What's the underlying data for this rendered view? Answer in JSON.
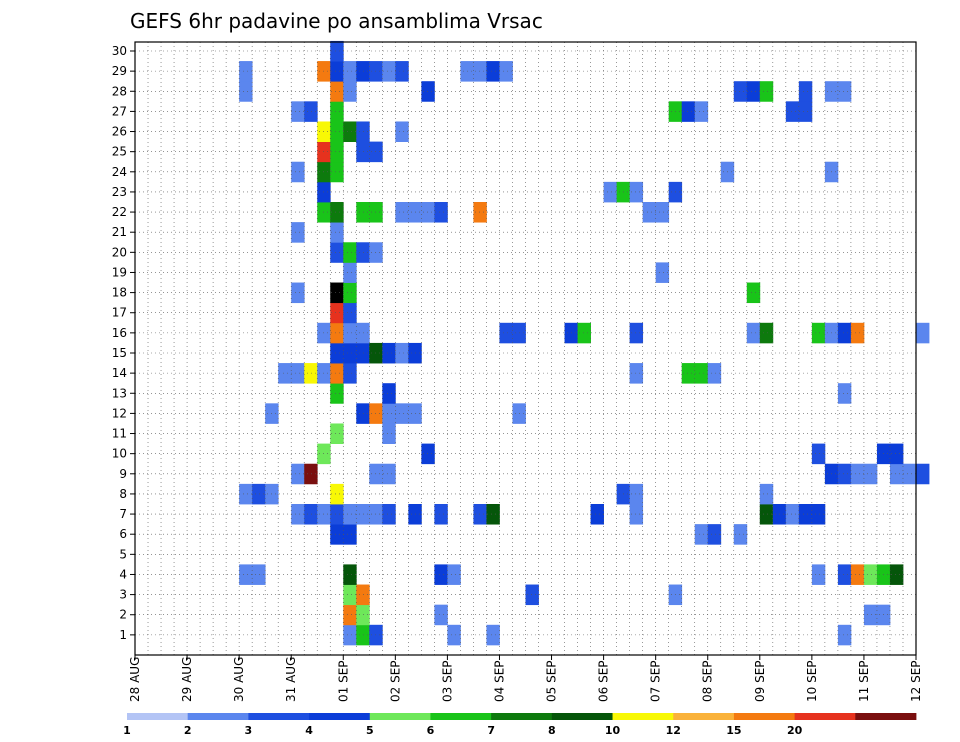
{
  "chart_data": {
    "type": "heatmap",
    "title": "GEFS 6hr padavine po ansamblima Vrsac",
    "xlabel": "",
    "ylabel": "",
    "x_tick_labels": [
      "28 AUG",
      "29 AUG",
      "30 AUG",
      "31 AUG",
      "01 SEP",
      "02 SEP",
      "03 SEP",
      "04 SEP",
      "05 SEP",
      "06 SEP",
      "07 SEP",
      "08 SEP",
      "09 SEP",
      "10 SEP",
      "11 SEP",
      "12 SEP"
    ],
    "y_tick_labels": [
      "1",
      "2",
      "3",
      "4",
      "5",
      "6",
      "7",
      "8",
      "9",
      "10",
      "11",
      "12",
      "13",
      "14",
      "15",
      "16",
      "17",
      "18",
      "19",
      "20",
      "21",
      "22",
      "23",
      "24",
      "25",
      "26",
      "27",
      "28",
      "29",
      "30"
    ],
    "xlim_days": [
      0,
      15
    ],
    "time_step_hours": 6,
    "ylim": [
      0,
      30
    ],
    "grid": true,
    "colorbar": {
      "labels": [
        "1",
        "2",
        "3",
        "4",
        "5",
        "6",
        "7",
        "8",
        "10",
        "12",
        "15",
        "20"
      ],
      "colors": [
        "#b3c4f5",
        "#5b86ee",
        "#1e4fe0",
        "#0b3dd8",
        "#6ee85a",
        "#19c419",
        "#0d7a0d",
        "#05560a",
        "#f8f805",
        "#fab23a",
        "#f47a10",
        "#e6321e",
        "#7a0f0f"
      ]
    },
    "cells": [
      [
        1,
        16,
        1
      ],
      [
        1,
        17,
        5
      ],
      [
        1,
        18,
        2
      ],
      [
        1,
        24,
        1
      ],
      [
        1,
        27,
        1
      ],
      [
        1,
        54,
        1
      ],
      [
        2,
        16,
        10
      ],
      [
        2,
        17,
        4
      ],
      [
        2,
        23,
        1
      ],
      [
        2,
        56,
        1
      ],
      [
        2,
        57,
        1
      ],
      [
        3,
        16,
        4
      ],
      [
        3,
        17,
        10
      ],
      [
        3,
        30,
        2
      ],
      [
        3,
        41,
        1
      ],
      [
        4,
        8,
        1
      ],
      [
        4,
        9,
        1
      ],
      [
        4,
        16,
        7
      ],
      [
        4,
        23,
        3
      ],
      [
        4,
        24,
        1
      ],
      [
        4,
        52,
        1
      ],
      [
        4,
        54,
        2
      ],
      [
        4,
        55,
        10
      ],
      [
        4,
        56,
        4
      ],
      [
        4,
        57,
        5
      ],
      [
        4,
        58,
        7
      ],
      [
        6,
        15,
        3
      ],
      [
        6,
        16,
        3
      ],
      [
        6,
        43,
        1
      ],
      [
        6,
        44,
        2
      ],
      [
        6,
        46,
        1
      ],
      [
        7,
        12,
        1
      ],
      [
        7,
        13,
        2
      ],
      [
        7,
        14,
        1
      ],
      [
        7,
        15,
        2
      ],
      [
        7,
        16,
        1
      ],
      [
        7,
        17,
        1
      ],
      [
        7,
        18,
        1
      ],
      [
        7,
        19,
        2
      ],
      [
        7,
        21,
        3
      ],
      [
        7,
        23,
        2
      ],
      [
        7,
        26,
        2
      ],
      [
        7,
        27,
        7
      ],
      [
        7,
        35,
        3
      ],
      [
        7,
        38,
        1
      ],
      [
        7,
        48,
        7
      ],
      [
        7,
        49,
        3
      ],
      [
        7,
        50,
        1
      ],
      [
        7,
        51,
        3
      ],
      [
        7,
        52,
        3
      ],
      [
        8,
        8,
        1
      ],
      [
        8,
        9,
        2
      ],
      [
        8,
        10,
        1
      ],
      [
        8,
        15,
        8
      ],
      [
        8,
        37,
        2
      ],
      [
        8,
        38,
        1
      ],
      [
        8,
        48,
        1
      ],
      [
        9,
        12,
        1
      ],
      [
        9,
        13,
        12
      ],
      [
        9,
        18,
        1
      ],
      [
        9,
        19,
        1
      ],
      [
        9,
        53,
        3
      ],
      [
        9,
        54,
        2
      ],
      [
        9,
        55,
        1
      ],
      [
        9,
        56,
        1
      ],
      [
        9,
        58,
        1
      ],
      [
        9,
        59,
        1
      ],
      [
        9,
        60,
        2
      ],
      [
        10,
        14,
        4
      ],
      [
        10,
        22,
        3
      ],
      [
        10,
        52,
        2
      ],
      [
        10,
        57,
        3
      ],
      [
        10,
        58,
        3
      ],
      [
        11,
        15,
        4
      ],
      [
        11,
        19,
        1
      ],
      [
        12,
        10,
        1
      ],
      [
        12,
        17,
        3
      ],
      [
        12,
        18,
        10
      ],
      [
        12,
        19,
        1
      ],
      [
        12,
        20,
        1
      ],
      [
        12,
        21,
        1
      ],
      [
        12,
        29,
        1
      ],
      [
        13,
        15,
        5
      ],
      [
        13,
        19,
        3
      ],
      [
        13,
        54,
        1
      ],
      [
        14,
        11,
        1
      ],
      [
        14,
        12,
        1
      ],
      [
        14,
        13,
        8
      ],
      [
        14,
        14,
        1
      ],
      [
        14,
        15,
        10
      ],
      [
        14,
        16,
        2
      ],
      [
        14,
        38,
        1
      ],
      [
        14,
        42,
        5
      ],
      [
        14,
        43,
        5
      ],
      [
        14,
        44,
        1
      ],
      [
        15,
        15,
        3
      ],
      [
        15,
        16,
        3
      ],
      [
        15,
        17,
        3
      ],
      [
        15,
        18,
        7
      ],
      [
        15,
        19,
        3
      ],
      [
        15,
        20,
        1
      ],
      [
        15,
        21,
        3
      ],
      [
        16,
        14,
        1
      ],
      [
        16,
        15,
        10
      ],
      [
        16,
        16,
        1
      ],
      [
        16,
        17,
        1
      ],
      [
        16,
        28,
        2
      ],
      [
        16,
        29,
        2
      ],
      [
        16,
        33,
        3
      ],
      [
        16,
        34,
        5
      ],
      [
        16,
        38,
        2
      ],
      [
        16,
        47,
        1
      ],
      [
        16,
        48,
        6
      ],
      [
        16,
        52,
        5
      ],
      [
        16,
        53,
        1
      ],
      [
        16,
        54,
        3
      ],
      [
        16,
        55,
        10
      ],
      [
        16,
        60,
        1
      ],
      [
        17,
        15,
        11
      ],
      [
        17,
        16,
        2
      ],
      [
        18,
        12,
        1
      ],
      [
        18,
        15,
        13
      ],
      [
        18,
        16,
        5
      ],
      [
        18,
        47,
        5
      ],
      [
        19,
        16,
        1
      ],
      [
        19,
        40,
        1
      ],
      [
        20,
        15,
        2
      ],
      [
        20,
        16,
        5
      ],
      [
        20,
        17,
        2
      ],
      [
        20,
        18,
        1
      ],
      [
        21,
        12,
        1
      ],
      [
        21,
        15,
        1
      ],
      [
        22,
        14,
        5
      ],
      [
        22,
        15,
        6
      ],
      [
        22,
        17,
        5
      ],
      [
        22,
        18,
        5
      ],
      [
        22,
        20,
        1
      ],
      [
        22,
        21,
        1
      ],
      [
        22,
        22,
        1
      ],
      [
        22,
        23,
        2
      ],
      [
        22,
        26,
        10
      ],
      [
        22,
        39,
        1
      ],
      [
        22,
        40,
        1
      ],
      [
        23,
        14,
        3
      ],
      [
        23,
        36,
        1
      ],
      [
        23,
        37,
        5
      ],
      [
        23,
        38,
        1
      ],
      [
        23,
        41,
        2
      ],
      [
        24,
        12,
        1
      ],
      [
        24,
        14,
        6
      ],
      [
        24,
        15,
        5
      ],
      [
        24,
        45,
        1
      ],
      [
        24,
        53,
        1
      ],
      [
        25,
        14,
        11
      ],
      [
        25,
        15,
        5
      ],
      [
        25,
        17,
        2
      ],
      [
        25,
        18,
        2
      ],
      [
        26,
        14,
        8
      ],
      [
        26,
        15,
        5
      ],
      [
        26,
        16,
        6
      ],
      [
        26,
        17,
        2
      ],
      [
        26,
        20,
        1
      ],
      [
        27,
        12,
        1
      ],
      [
        27,
        13,
        2
      ],
      [
        27,
        15,
        5
      ],
      [
        27,
        41,
        5
      ],
      [
        27,
        42,
        3
      ],
      [
        27,
        43,
        1
      ],
      [
        27,
        50,
        2
      ],
      [
        27,
        51,
        2
      ],
      [
        28,
        8,
        1
      ],
      [
        28,
        15,
        10
      ],
      [
        28,
        16,
        1
      ],
      [
        28,
        22,
        3
      ],
      [
        28,
        46,
        2
      ],
      [
        28,
        47,
        3
      ],
      [
        28,
        48,
        5
      ],
      [
        28,
        51,
        2
      ],
      [
        28,
        53,
        1
      ],
      [
        28,
        54,
        1
      ],
      [
        29,
        8,
        1
      ],
      [
        29,
        14,
        10
      ],
      [
        29,
        15,
        3
      ],
      [
        29,
        16,
        1
      ],
      [
        29,
        17,
        3
      ],
      [
        29,
        18,
        2
      ],
      [
        29,
        19,
        1
      ],
      [
        29,
        20,
        2
      ],
      [
        29,
        25,
        1
      ],
      [
        29,
        26,
        1
      ],
      [
        29,
        27,
        3
      ],
      [
        29,
        28,
        1
      ],
      [
        30,
        15,
        2
      ]
    ]
  }
}
